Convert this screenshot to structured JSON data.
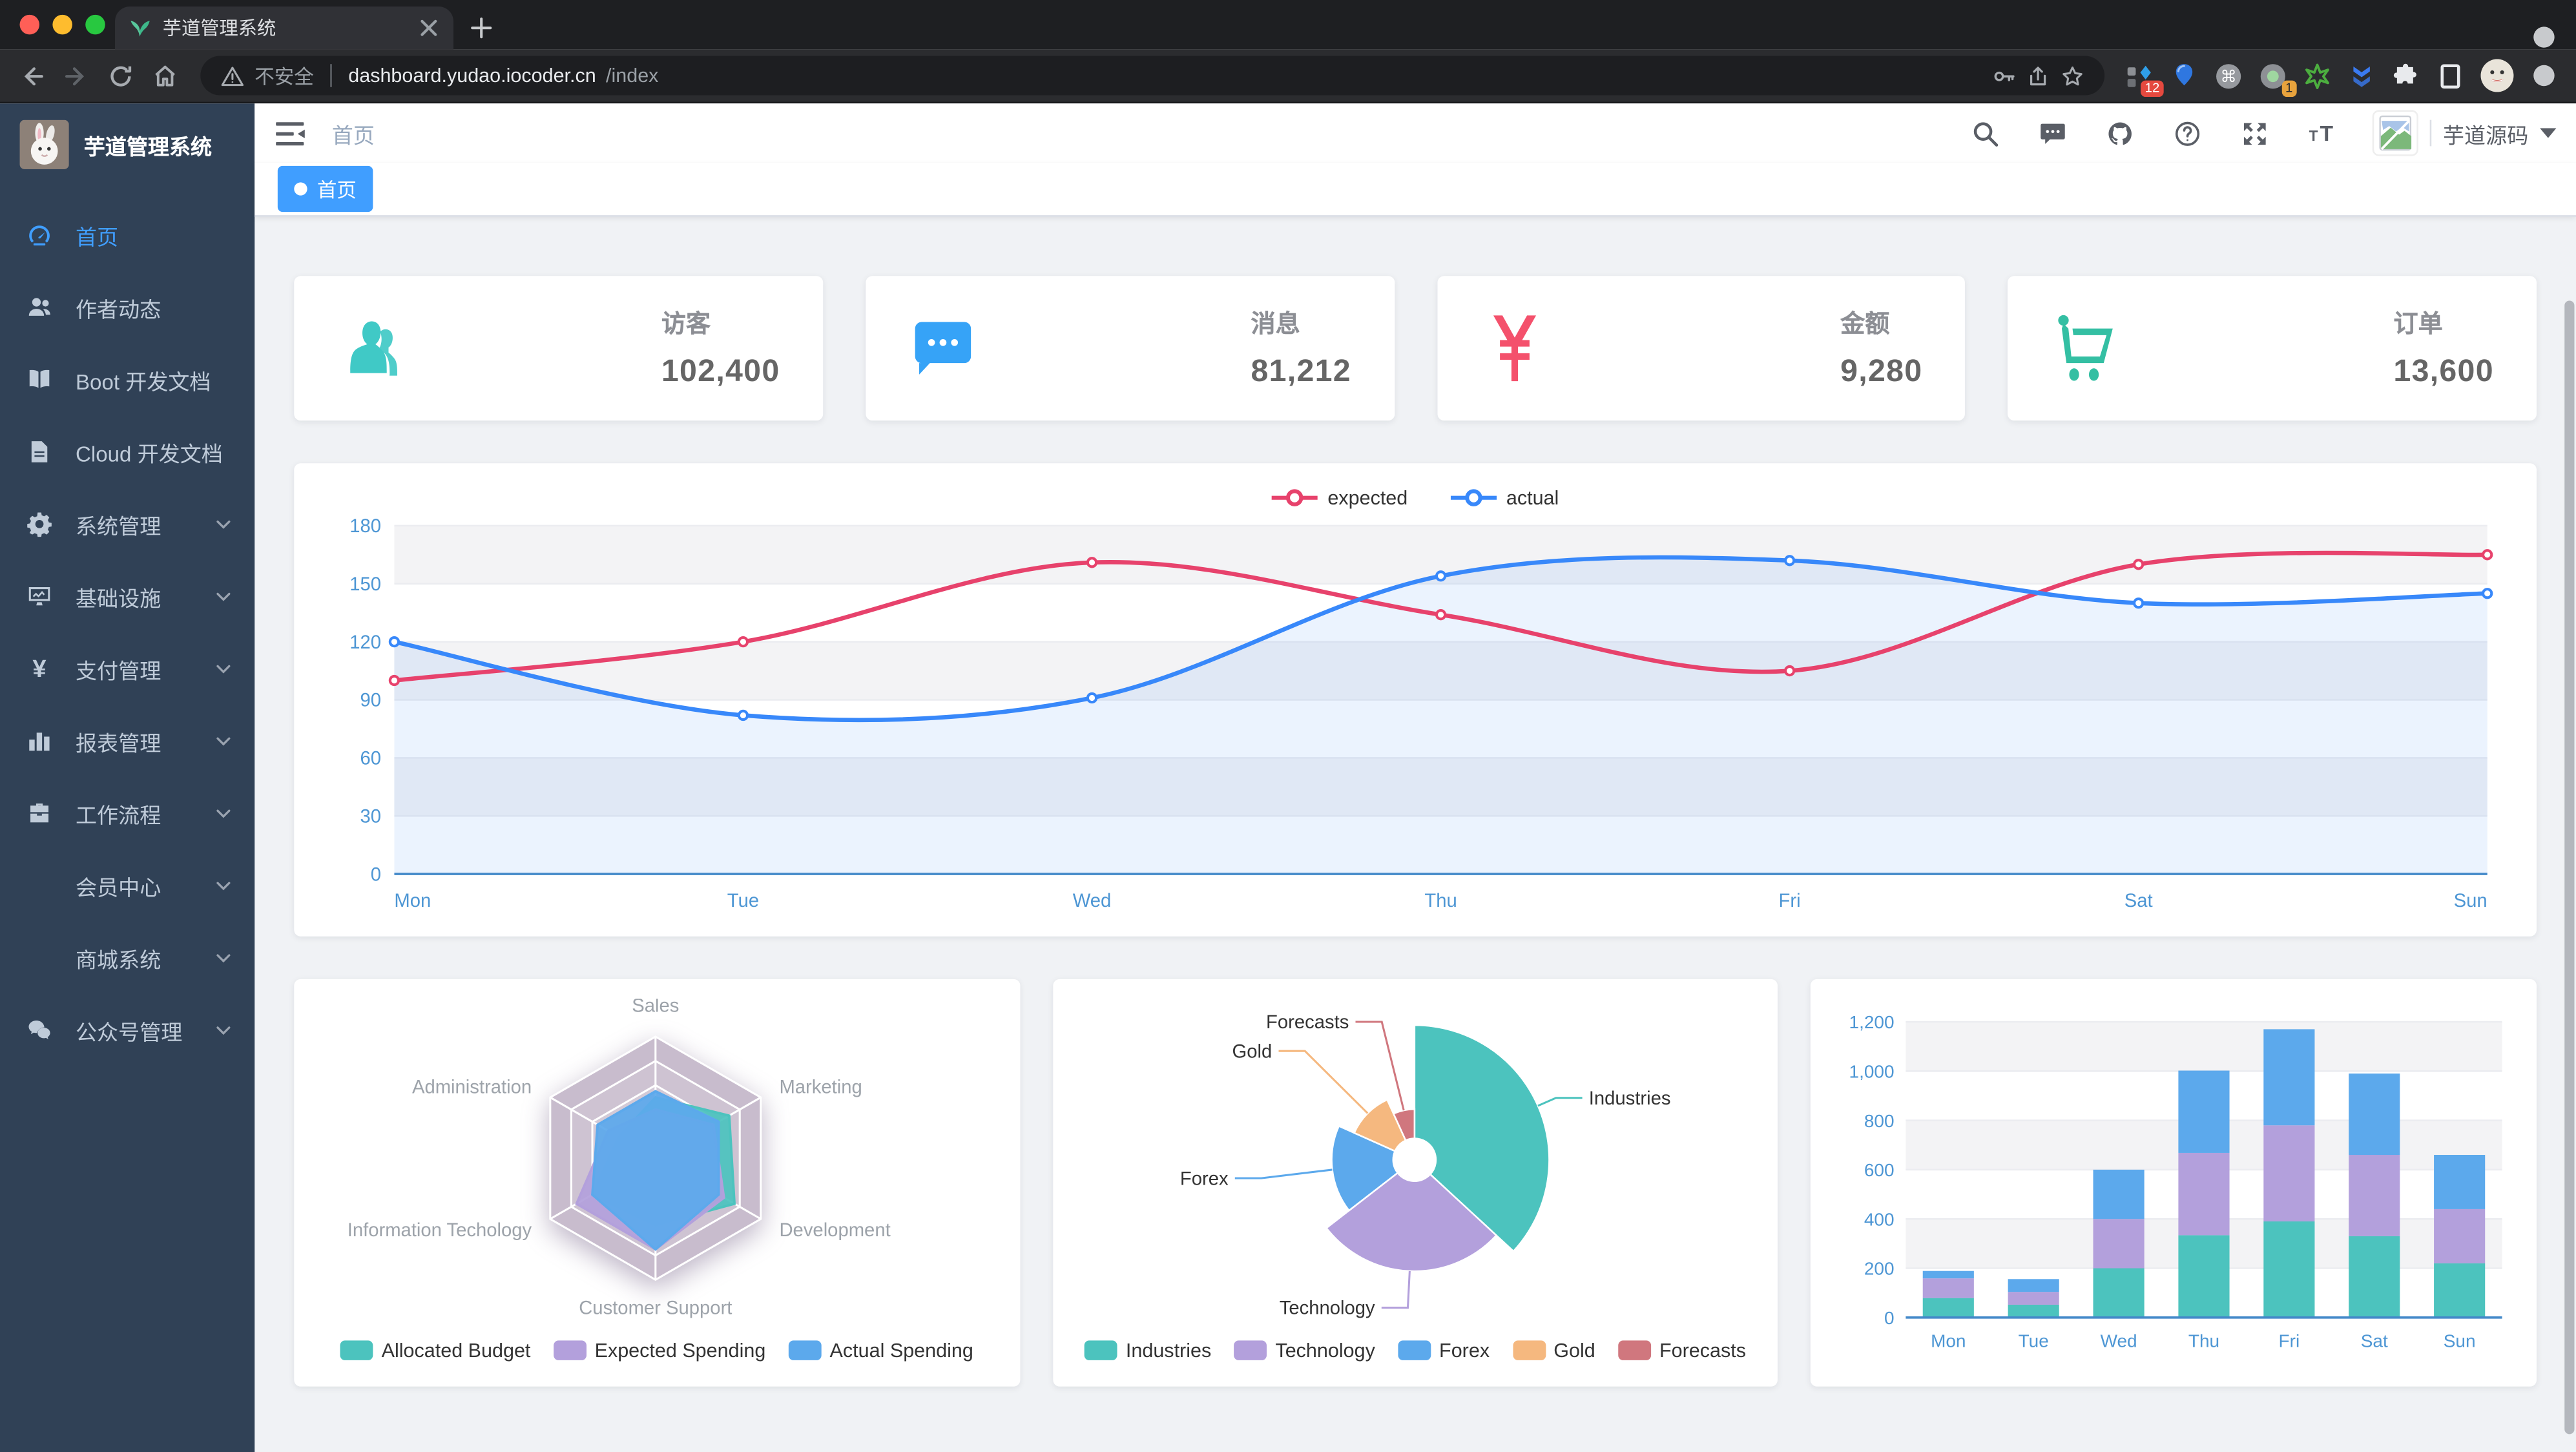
{
  "browser": {
    "tab_title": "芋道管理系统",
    "security_label": "不安全",
    "url_host": "dashboard.yudao.iocoder.cn",
    "url_path": "/index",
    "extension_badges": {
      "grid": "12",
      "circle": "1"
    }
  },
  "sidebar": {
    "logo_title": "芋道管理系统",
    "bg_color": "#304156",
    "active_color": "#409eff",
    "text_color": "#bfcbd9",
    "items": [
      {
        "key": "home",
        "label": "首页",
        "icon": "dashboard-icon",
        "active": true,
        "expandable": false
      },
      {
        "key": "author",
        "label": "作者动态",
        "icon": "people-icon",
        "active": false,
        "expandable": false
      },
      {
        "key": "boot-doc",
        "label": "Boot 开发文档",
        "icon": "book-icon",
        "active": false,
        "expandable": false
      },
      {
        "key": "cloud-doc",
        "label": "Cloud 开发文档",
        "icon": "document-icon",
        "active": false,
        "expandable": false
      },
      {
        "key": "system",
        "label": "系统管理",
        "icon": "gear-icon",
        "active": false,
        "expandable": true
      },
      {
        "key": "infra",
        "label": "基础设施",
        "icon": "monitor-icon",
        "active": false,
        "expandable": true
      },
      {
        "key": "pay",
        "label": "支付管理",
        "icon": "yen-icon",
        "active": false,
        "expandable": true
      },
      {
        "key": "report",
        "label": "报表管理",
        "icon": "bar-chart-icon",
        "active": false,
        "expandable": true
      },
      {
        "key": "workflow",
        "label": "工作流程",
        "icon": "briefcase-icon",
        "active": false,
        "expandable": true
      },
      {
        "key": "member",
        "label": "会员中心",
        "icon": null,
        "active": false,
        "expandable": true
      },
      {
        "key": "mall",
        "label": "商城系统",
        "icon": null,
        "active": false,
        "expandable": true
      },
      {
        "key": "wechat-mp",
        "label": "公众号管理",
        "icon": "wechat-icon",
        "active": false,
        "expandable": true
      }
    ]
  },
  "navbar": {
    "breadcrumb": "首页",
    "icons": [
      "search-icon",
      "message-icon",
      "github-icon",
      "help-icon",
      "fullscreen-icon",
      "font-size-icon"
    ],
    "user_name": "芋道源码"
  },
  "tags_bar": {
    "active_tag": "首页",
    "active_color": "#409eff"
  },
  "stats": [
    {
      "key": "visitors",
      "label": "访客",
      "value": "102,400",
      "color": "#40c9c6",
      "icon": "people-stat-icon"
    },
    {
      "key": "messages",
      "label": "消息",
      "value": "81,212",
      "color": "#36a3f7",
      "icon": "message-stat-icon"
    },
    {
      "key": "amount",
      "label": "金额",
      "value": "9,280",
      "color": "#f4516c",
      "icon": "money-stat-icon"
    },
    {
      "key": "orders",
      "label": "订单",
      "value": "13,600",
      "color": "#34bfa3",
      "icon": "cart-stat-icon"
    }
  ],
  "chart_data": [
    {
      "id": "weekly-line",
      "type": "line",
      "categories": [
        "Mon",
        "Tue",
        "Wed",
        "Thu",
        "Fri",
        "Sat",
        "Sun"
      ],
      "series": [
        {
          "name": "expected",
          "color": "#e7426c",
          "smooth": true,
          "values": [
            100,
            120,
            161,
            134,
            105,
            160,
            165
          ]
        },
        {
          "name": "actual",
          "color": "#3888fa",
          "smooth": true,
          "area_color": "rgba(56,136,250,0.10)",
          "values": [
            120,
            82,
            91,
            154,
            162,
            140,
            145
          ]
        }
      ],
      "ylim": [
        0,
        180
      ],
      "yticks": [
        0,
        30,
        60,
        90,
        120,
        150,
        180
      ],
      "axis_color": "#4d96d4",
      "grid": true,
      "legend_position": "top-center"
    },
    {
      "id": "budget-radar",
      "type": "radar",
      "indicators": [
        {
          "name": "Sales",
          "max": 10000
        },
        {
          "name": "Marketing",
          "max": 20000
        },
        {
          "name": "Development",
          "max": 20000
        },
        {
          "name": "Customer Support",
          "max": 20000
        },
        {
          "name": "Information Techology",
          "max": 20000
        },
        {
          "name": "Administration",
          "max": 20000
        }
      ],
      "series": [
        {
          "name": "Allocated Budget",
          "color": "#4cc3be",
          "values": [
            5000,
            14000,
            15000,
            11000,
            12000,
            7000
          ]
        },
        {
          "name": "Expected Spending",
          "color": "#b3a0dc",
          "values": [
            4000,
            11000,
            13000,
            15000,
            15000,
            9000
          ]
        },
        {
          "name": "Actual Spending",
          "color": "#5ca9ec",
          "values": [
            5500,
            12000,
            12000,
            15000,
            12000,
            11000
          ]
        }
      ],
      "rings": 5,
      "legend_position": "bottom"
    },
    {
      "id": "category-pie",
      "type": "pie",
      "rose": true,
      "slices": [
        {
          "name": "Industries",
          "value": 320,
          "color": "#4cc3be"
        },
        {
          "name": "Technology",
          "value": 240,
          "color": "#b3a0dc"
        },
        {
          "name": "Forex",
          "value": 149,
          "color": "#5ca9ec"
        },
        {
          "name": "Gold",
          "value": 100,
          "color": "#f5b87f"
        },
        {
          "name": "Forecasts",
          "value": 59,
          "color": "#d0777e"
        }
      ],
      "legend_position": "bottom"
    },
    {
      "id": "weekly-bar",
      "type": "bar",
      "stacked": true,
      "categories": [
        "Mon",
        "Tue",
        "Wed",
        "Thu",
        "Fri",
        "Sat",
        "Sun"
      ],
      "series": [
        {
          "color": "#4cc3be",
          "values": [
            79,
            52,
            200,
            334,
            390,
            330,
            220
          ]
        },
        {
          "color": "#b3a0dc",
          "values": [
            80,
            52,
            200,
            334,
            390,
            330,
            220
          ]
        },
        {
          "color": "#5ca9ec",
          "values": [
            30,
            52,
            200,
            334,
            390,
            330,
            220
          ]
        }
      ],
      "ylim": [
        0,
        1200
      ],
      "yticks": [
        0,
        200,
        400,
        600,
        800,
        1000,
        1200
      ],
      "ytick_labels": [
        "0",
        "200",
        "400",
        "600",
        "800",
        "1,000",
        "1,200"
      ],
      "axis_color": "#4d96d4"
    }
  ]
}
